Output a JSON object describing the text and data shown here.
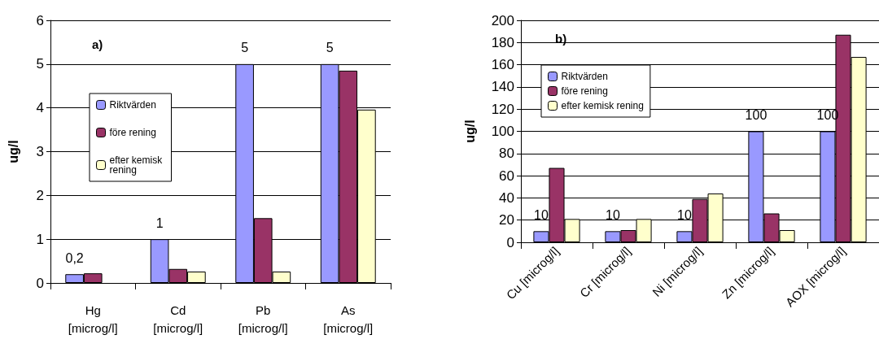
{
  "chart_data": [
    {
      "type": "bar",
      "title": "a)",
      "ylabel": "ug/l",
      "categories": [
        "Hg\n[microg/l]",
        "Cd\n[microg/l]",
        "Pb\n[microg/l]",
        "As\n[microg/l]"
      ],
      "series": [
        {
          "name": "Riktvärden",
          "color": "#9999ff",
          "values": [
            0.2,
            1,
            5,
            5
          ],
          "value_labels": [
            "0,2",
            "1",
            "5",
            "5"
          ]
        },
        {
          "name": "före rening",
          "color": "#993366",
          "values": [
            0.22,
            0.32,
            1.48,
            4.85
          ]
        },
        {
          "name": "efter kemisk rening",
          "color": "#ffffcc",
          "values": [
            null,
            0.26,
            0.26,
            3.96
          ]
        }
      ],
      "ylim": [
        0,
        6
      ],
      "yticks": [
        0,
        1,
        2,
        3,
        4,
        5,
        6
      ],
      "grid": "y",
      "legend": "left"
    },
    {
      "type": "bar",
      "title": "b)",
      "ylabel": "ug/l",
      "categories": [
        "Cu [microg/l]",
        "Cr [microg/l]",
        "Ni [microg/l]",
        "Zn [microg/l]",
        "AOX [microg/l]"
      ],
      "series": [
        {
          "name": "Riktvärden",
          "color": "#9999ff",
          "values": [
            10,
            10,
            10,
            100,
            100
          ],
          "value_labels": [
            "10",
            "10",
            "10",
            "100",
            "100"
          ]
        },
        {
          "name": "före rening",
          "color": "#993366",
          "values": [
            67,
            11,
            39,
            26,
            187
          ]
        },
        {
          "name": "efter kemisk rening",
          "color": "#ffffcc",
          "values": [
            21,
            21,
            44,
            11,
            167
          ]
        }
      ],
      "ylim": [
        0,
        200
      ],
      "yticks": [
        0,
        20,
        40,
        60,
        80,
        100,
        120,
        140,
        160,
        180,
        200
      ],
      "grid": "y",
      "legend": "top left"
    }
  ]
}
